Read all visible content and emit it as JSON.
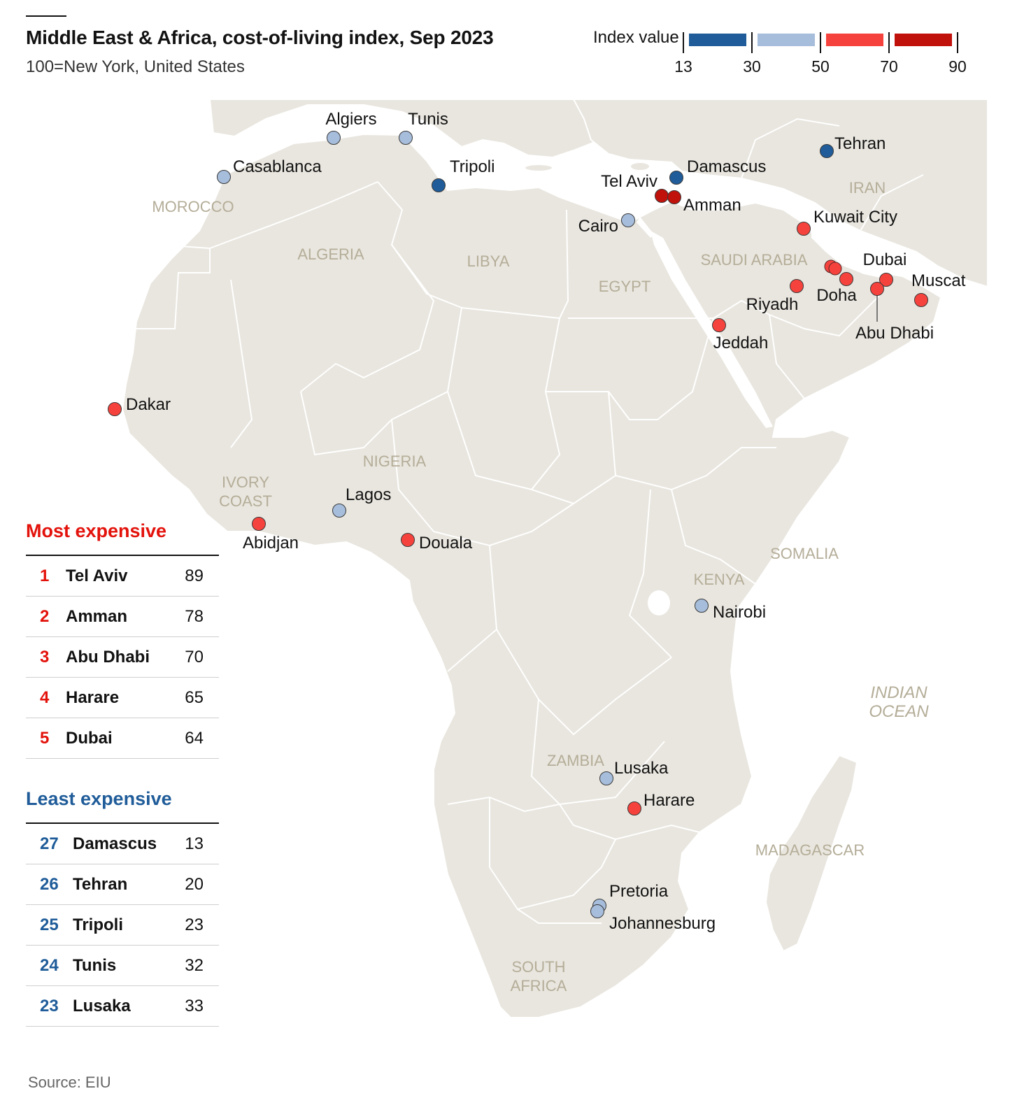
{
  "header": {
    "title": "Middle East & Africa, cost-of-living index, Sep 2023",
    "subtitle": "100=New York, United States"
  },
  "legend": {
    "title": "Index value",
    "ticks": [
      "13",
      "30",
      "50",
      "70",
      "90"
    ],
    "bins": [
      {
        "range": [
          13,
          30
        ],
        "color": "#1f5c99"
      },
      {
        "range": [
          30,
          50
        ],
        "color": "#a6bddb"
      },
      {
        "range": [
          50,
          70
        ],
        "color": "#f6423c"
      },
      {
        "range": [
          70,
          90
        ],
        "color": "#c0110b"
      }
    ]
  },
  "map": {
    "land_color": "#e9e6df",
    "border_color": "#ffffff",
    "country_labels": [
      "MOROCCO",
      "ALGERIA",
      "LIBYA",
      "EGYPT",
      "SAUDI ARABIA",
      "IRAN",
      "NIGERIA",
      "IVORY COAST",
      "SOMALIA",
      "KENYA",
      "ZAMBIA",
      "MADAGASCAR",
      "SOUTH AFRICA"
    ],
    "sea_labels": [
      "INDIAN OCEAN"
    ],
    "cities": [
      {
        "name": "Algiers",
        "band": "light-blue"
      },
      {
        "name": "Tunis",
        "band": "light-blue"
      },
      {
        "name": "Casablanca",
        "band": "light-blue"
      },
      {
        "name": "Tripoli",
        "band": "dark-blue"
      },
      {
        "name": "Damascus",
        "band": "dark-blue"
      },
      {
        "name": "Tehran",
        "band": "dark-blue"
      },
      {
        "name": "Tel Aviv",
        "band": "dark-red"
      },
      {
        "name": "Amman",
        "band": "dark-red"
      },
      {
        "name": "Cairo",
        "band": "light-blue"
      },
      {
        "name": "Kuwait City",
        "band": "red"
      },
      {
        "name": "Dubai",
        "band": "red"
      },
      {
        "name": "Muscat",
        "band": "red"
      },
      {
        "name": "Riyadh",
        "band": "red"
      },
      {
        "name": "Doha",
        "band": "red"
      },
      {
        "name": "Abu Dhabi",
        "band": "red"
      },
      {
        "name": "Jeddah",
        "band": "red"
      },
      {
        "name": "Dakar",
        "band": "red"
      },
      {
        "name": "Lagos",
        "band": "light-blue"
      },
      {
        "name": "Abidjan",
        "band": "red"
      },
      {
        "name": "Douala",
        "band": "red"
      },
      {
        "name": "Nairobi",
        "band": "light-blue"
      },
      {
        "name": "Lusaka",
        "band": "light-blue"
      },
      {
        "name": "Harare",
        "band": "red"
      },
      {
        "name": "Pretoria",
        "band": "light-blue"
      },
      {
        "name": "Johannesburg",
        "band": "light-blue"
      }
    ]
  },
  "most_expensive": {
    "heading": "Most expensive",
    "rows": [
      {
        "rank": "1",
        "city": "Tel Aviv",
        "value": "89"
      },
      {
        "rank": "2",
        "city": "Amman",
        "value": "78"
      },
      {
        "rank": "3",
        "city": "Abu Dhabi",
        "value": "70"
      },
      {
        "rank": "4",
        "city": "Harare",
        "value": "65"
      },
      {
        "rank": "5",
        "city": "Dubai",
        "value": "64"
      }
    ]
  },
  "least_expensive": {
    "heading": "Least expensive",
    "rows": [
      {
        "rank": "27",
        "city": "Damascus",
        "value": "13"
      },
      {
        "rank": "26",
        "city": "Tehran",
        "value": "20"
      },
      {
        "rank": "25",
        "city": "Tripoli",
        "value": "23"
      },
      {
        "rank": "24",
        "city": "Tunis",
        "value": "32"
      },
      {
        "rank": "23",
        "city": "Lusaka",
        "value": "33"
      }
    ]
  },
  "source": "Source: EIU"
}
